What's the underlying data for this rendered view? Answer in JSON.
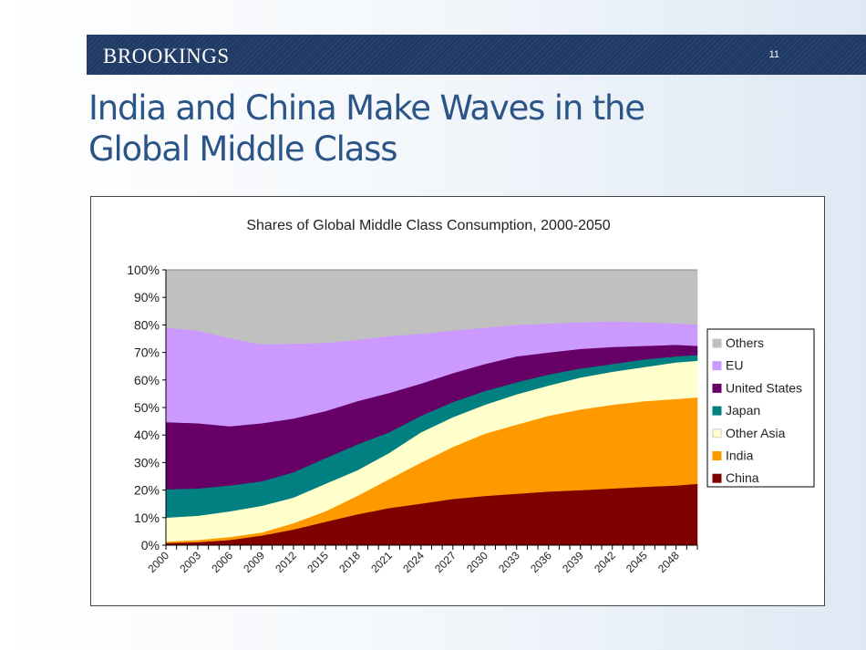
{
  "header": {
    "brand": "BROOKINGS",
    "page_number": "11"
  },
  "slide": {
    "title_line1": "India and China Make Waves in the",
    "title_line2": "Global Middle Class"
  },
  "chart_data": {
    "type": "area",
    "stacked": "percent",
    "title": "Shares of Global Middle Class Consumption, 2000-2050",
    "xlabel": "",
    "ylabel": "",
    "xlim": [
      2000,
      2050
    ],
    "ylim": [
      0,
      100
    ],
    "y_ticks": [
      "0%",
      "10%",
      "20%",
      "30%",
      "40%",
      "50%",
      "60%",
      "70%",
      "80%",
      "90%",
      "100%"
    ],
    "x_tick_labels": [
      "2000",
      "2003",
      "2006",
      "2009",
      "2012",
      "2015",
      "2018",
      "2021",
      "2024",
      "2027",
      "2030",
      "2033",
      "2036",
      "2039",
      "2042",
      "2045",
      "2048"
    ],
    "grid": false,
    "legend_placement": "right",
    "x": [
      2000,
      2003,
      2006,
      2009,
      2012,
      2015,
      2018,
      2021,
      2024,
      2027,
      2030,
      2033,
      2036,
      2039,
      2042,
      2045,
      2048,
      2050
    ],
    "series": [
      {
        "name": "China",
        "color": "#800000",
        "values": [
          0.8,
          1.1,
          1.9,
          3.5,
          5.7,
          8.5,
          11.2,
          13.5,
          15.1,
          16.8,
          17.9,
          18.7,
          19.5,
          20.0,
          20.6,
          21.2,
          21.7,
          22.3
        ]
      },
      {
        "name": "India",
        "color": "#ff9900",
        "values": [
          0.5,
          0.8,
          1.1,
          1.1,
          2.3,
          3.8,
          6.7,
          10.5,
          14.9,
          18.9,
          22.6,
          25.1,
          27.5,
          29.3,
          30.4,
          31.1,
          31.4,
          31.4
        ]
      },
      {
        "name": "Other Asia",
        "color": "#ffffcc",
        "values": [
          8.7,
          8.8,
          9.3,
          9.7,
          9.3,
          10.0,
          9.3,
          9.5,
          11.0,
          10.8,
          10.5,
          11.0,
          11.0,
          11.6,
          12.0,
          12.4,
          13.3,
          13.3
        ]
      },
      {
        "name": "Japan",
        "color": "#008080",
        "values": [
          10.3,
          9.9,
          9.4,
          8.9,
          9.2,
          9.3,
          9.4,
          7.5,
          6.0,
          5.5,
          5.0,
          4.4,
          4.0,
          3.3,
          2.8,
          2.8,
          2.2,
          2.1
        ]
      },
      {
        "name": "United States",
        "color": "#660066",
        "values": [
          24.4,
          23.7,
          21.5,
          21.1,
          19.5,
          17.1,
          15.7,
          14.3,
          11.7,
          10.5,
          9.8,
          9.4,
          8.0,
          7.1,
          6.2,
          4.9,
          4.2,
          3.3
        ]
      },
      {
        "name": "EU",
        "color": "#cc99ff",
        "values": [
          34.3,
          33.7,
          32.0,
          28.7,
          27.2,
          24.8,
          22.3,
          20.7,
          18.1,
          15.5,
          13.2,
          11.4,
          10.5,
          9.7,
          9.3,
          8.6,
          7.7,
          7.8
        ]
      },
      {
        "name": "Others",
        "color": "#c0c0c0",
        "values": [
          21.0,
          22.0,
          24.8,
          27.0,
          26.8,
          26.5,
          25.4,
          24.0,
          23.2,
          22.0,
          21.0,
          20.0,
          19.5,
          19.0,
          18.7,
          19.0,
          19.5,
          19.8
        ]
      }
    ]
  }
}
